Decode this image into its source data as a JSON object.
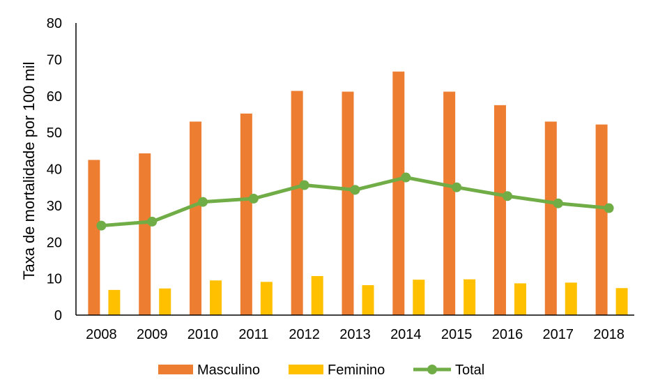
{
  "chart_data": {
    "type": "bar",
    "categories": [
      "2008",
      "2009",
      "2010",
      "2011",
      "2012",
      "2013",
      "2014",
      "2015",
      "2016",
      "2017",
      "2018"
    ],
    "series": [
      {
        "name": "Masculino",
        "type": "bar",
        "color": "#ED7D31",
        "values": [
          42.5,
          44.3,
          53.0,
          55.2,
          61.4,
          61.2,
          66.7,
          61.2,
          57.5,
          53.0,
          52.2
        ]
      },
      {
        "name": "Feminino",
        "type": "bar",
        "color": "#FFC000",
        "values": [
          6.9,
          7.3,
          9.5,
          9.1,
          10.7,
          8.2,
          9.7,
          9.8,
          8.7,
          8.9,
          7.4
        ]
      },
      {
        "name": "Total",
        "type": "line",
        "marker": "circle",
        "color": "#70AD47",
        "values": [
          24.5,
          25.6,
          31.0,
          31.9,
          35.6,
          34.3,
          37.7,
          35.0,
          32.6,
          30.6,
          29.3
        ]
      }
    ],
    "ylabel": "Taxa de mortalidade  por 100 mil",
    "xlabel": "",
    "title": "",
    "ylim": [
      0,
      80
    ],
    "yticks": [
      0,
      10,
      20,
      30,
      40,
      50,
      60,
      70,
      80
    ],
    "grid": false,
    "legend_position": "bottom"
  }
}
